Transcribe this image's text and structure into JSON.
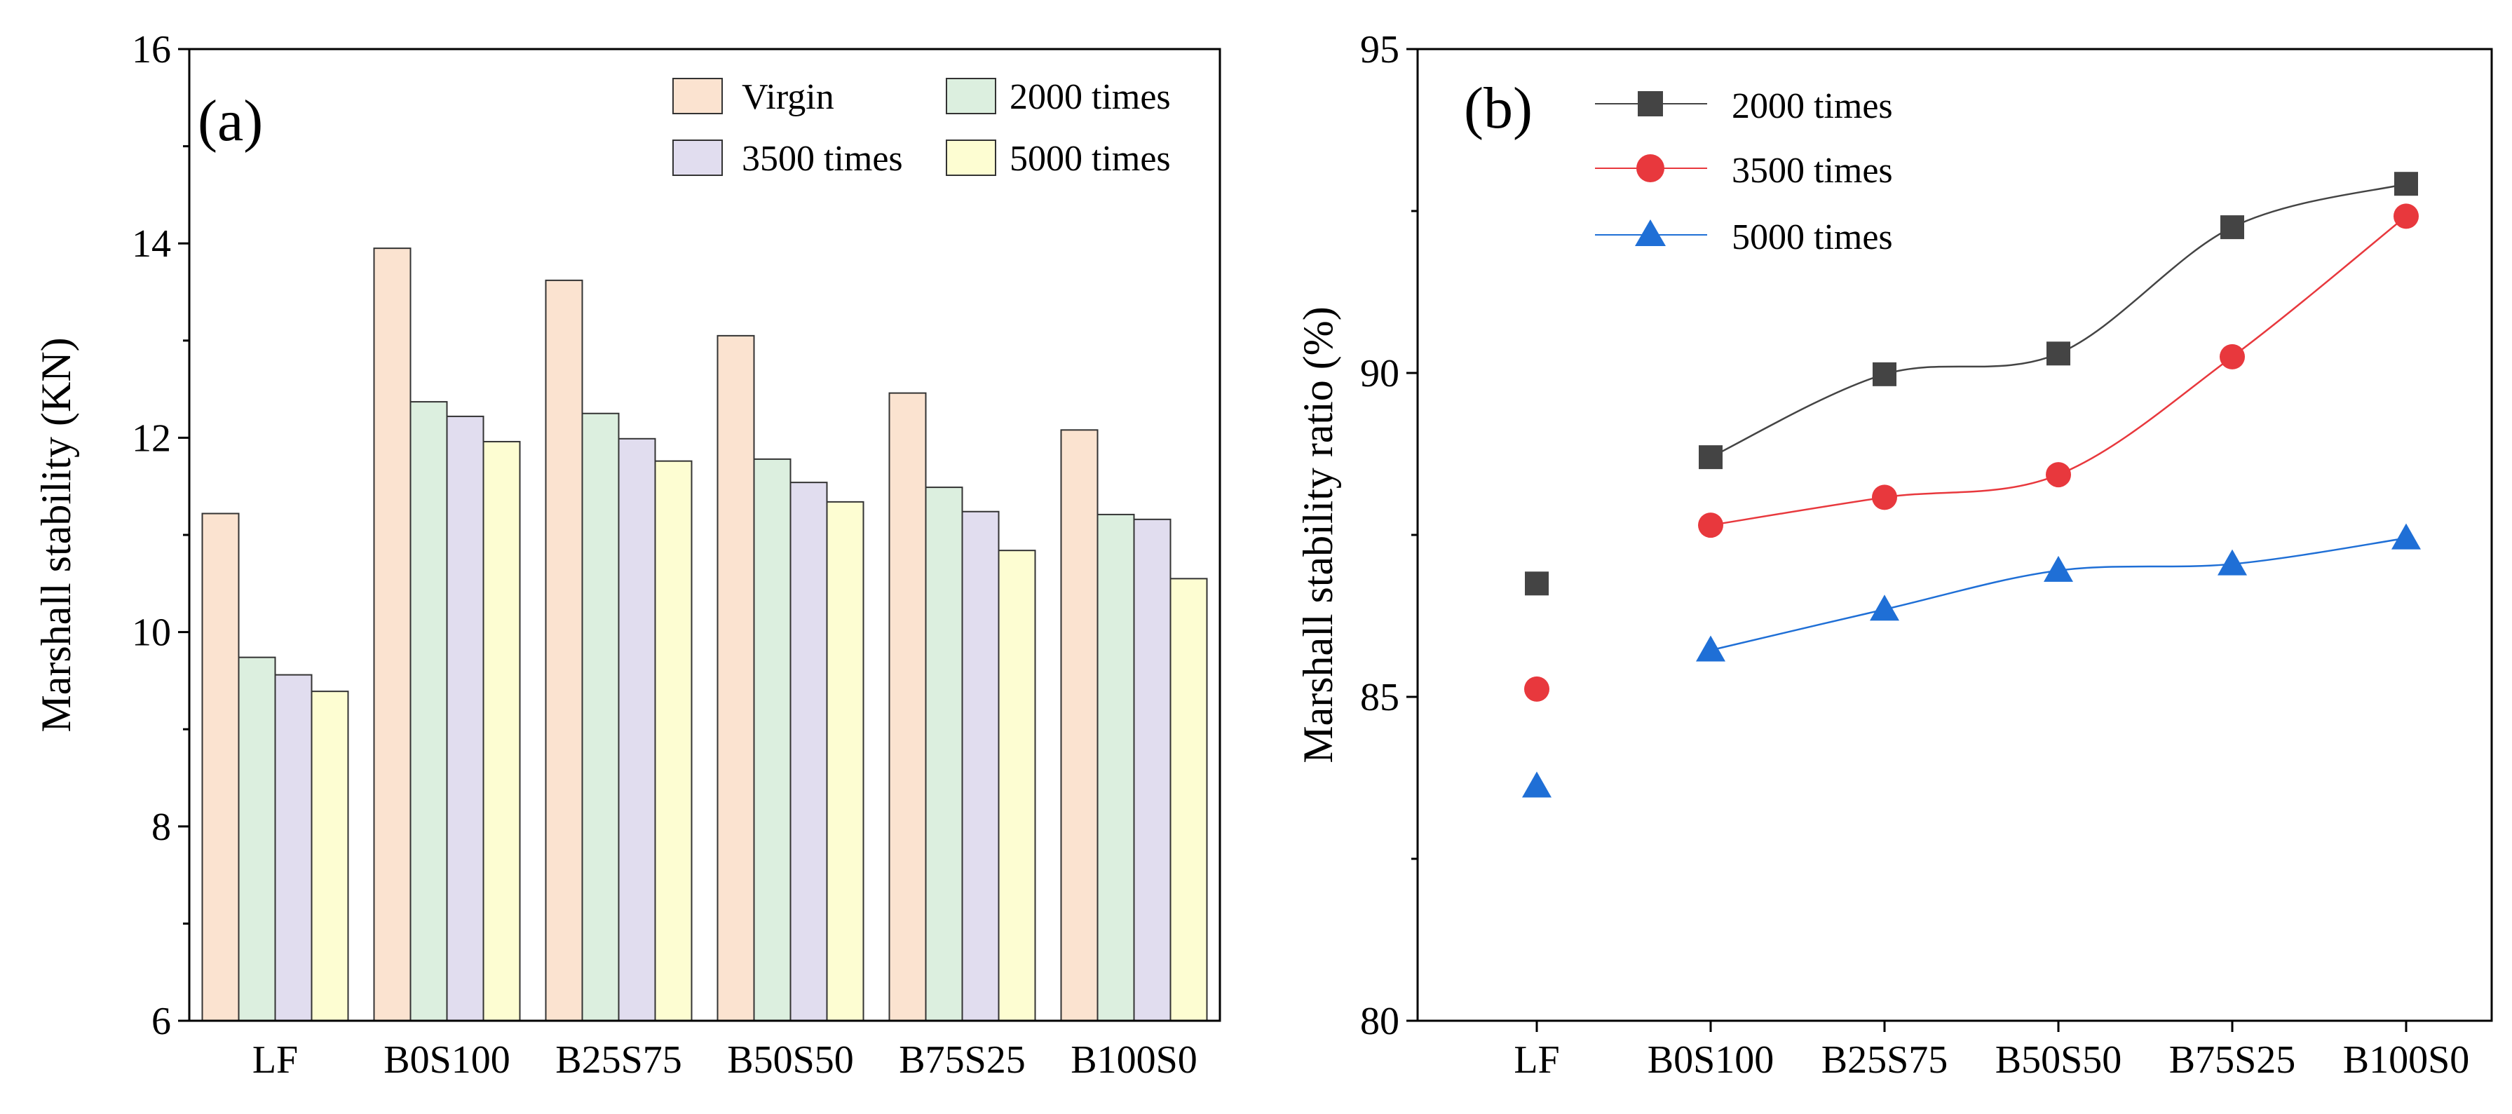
{
  "chart_data": [
    {
      "id": "a",
      "type": "bar",
      "panel_label": "(a)",
      "title": "",
      "xlabel": "",
      "ylabel": "Marshall stability (KN)",
      "ylim": [
        6,
        16
      ],
      "yticks": [
        "6",
        "8",
        "10",
        "12",
        "14",
        "16"
      ],
      "categories": [
        "LF",
        "B0S100",
        "B25S75",
        "B50S50",
        "B75S25",
        "B100S0"
      ],
      "legend_position": "top-right",
      "series": [
        {
          "name": "Virgin",
          "color": "#fbe3d0",
          "values": [
            11.22,
            13.95,
            13.62,
            13.05,
            12.46,
            12.08
          ]
        },
        {
          "name": "2000 times",
          "color": "#dcefdf",
          "values": [
            9.74,
            12.37,
            12.25,
            11.78,
            11.49,
            11.21
          ]
        },
        {
          "name": "3500 times",
          "color": "#e1ddef",
          "values": [
            9.56,
            12.22,
            11.99,
            11.54,
            11.24,
            11.16
          ]
        },
        {
          "name": "5000 times",
          "color": "#fdfdd2",
          "values": [
            9.39,
            11.96,
            11.76,
            11.34,
            10.84,
            10.55
          ]
        }
      ]
    },
    {
      "id": "b",
      "type": "line",
      "panel_label": "(b)",
      "title": "",
      "xlabel": "",
      "ylabel": "Marshall stability ratio (%)",
      "ylim": [
        80,
        95
      ],
      "yticks": [
        "80",
        "85",
        "90",
        "95"
      ],
      "categories": [
        "LF",
        "B0S100",
        "B25S75",
        "B50S50",
        "B75S25",
        "B100S0"
      ],
      "legend_position": "top-left",
      "series": [
        {
          "name": "2000 times",
          "color": "#444444",
          "marker": "square",
          "values": [
            86.75,
            88.7,
            89.98,
            90.3,
            92.25,
            92.92
          ]
        },
        {
          "name": "3500 times",
          "color": "#e8383d",
          "marker": "circle",
          "values": [
            85.12,
            87.65,
            88.08,
            88.43,
            90.25,
            92.42
          ]
        },
        {
          "name": "5000 times",
          "color": "#1f6fd6",
          "marker": "triangle",
          "values": [
            83.62,
            85.72,
            86.35,
            86.95,
            87.05,
            87.45
          ]
        }
      ]
    }
  ]
}
